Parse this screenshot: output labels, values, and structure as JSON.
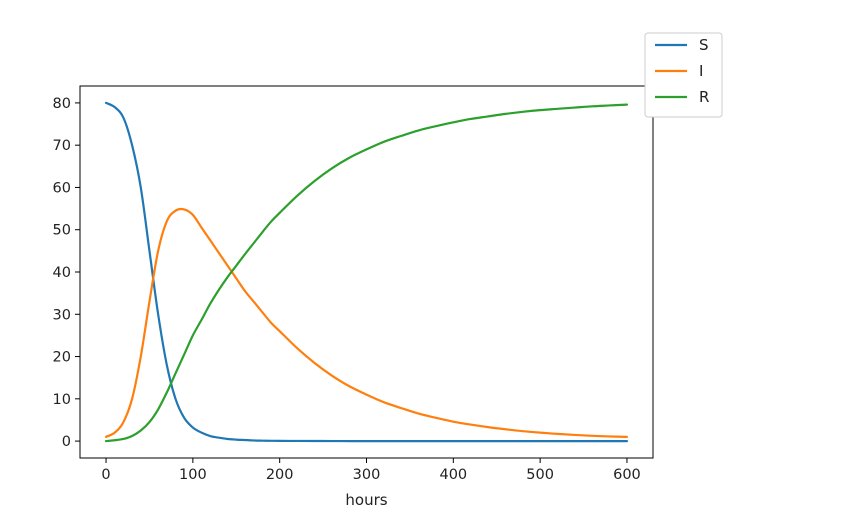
{
  "chart_data": {
    "type": "line",
    "xlabel": "hours",
    "ylabel": "",
    "title": "",
    "xlim": [
      -30,
      630
    ],
    "ylim": [
      -4,
      84
    ],
    "xticks": [
      0,
      100,
      200,
      300,
      400,
      500,
      600
    ],
    "yticks": [
      0,
      10,
      20,
      30,
      40,
      50,
      60,
      70,
      80
    ],
    "grid": false,
    "legend_position": "outside top-right",
    "x": [
      0,
      10,
      20,
      30,
      40,
      50,
      60,
      70,
      80,
      90,
      100,
      110,
      120,
      130,
      140,
      150,
      160,
      170,
      180,
      190,
      200,
      220,
      240,
      260,
      280,
      300,
      320,
      340,
      360,
      380,
      400,
      420,
      440,
      460,
      480,
      500,
      520,
      540,
      560,
      580,
      600
    ],
    "series": [
      {
        "name": "S",
        "color": "#1f77b4",
        "values": [
          80.0,
          79.0,
          76.5,
          70.0,
          60.0,
          45.0,
          30.0,
          18.0,
          10.0,
          5.5,
          3.2,
          2.0,
          1.2,
          0.8,
          0.5,
          0.35,
          0.25,
          0.15,
          0.1,
          0.07,
          0.05,
          0.03,
          0.02,
          0.01,
          0,
          0,
          0,
          0,
          0,
          0,
          0,
          0,
          0,
          0,
          0,
          0,
          0,
          0,
          0,
          0,
          0
        ]
      },
      {
        "name": "I",
        "color": "#ff7f0e",
        "values": [
          1.0,
          2.0,
          4.5,
          10.0,
          20.0,
          33.0,
          45.0,
          52.0,
          54.5,
          54.8,
          53.5,
          50.5,
          47.5,
          44.5,
          41.5,
          38.5,
          35.5,
          33.0,
          30.5,
          28.0,
          26.0,
          22.0,
          18.5,
          15.5,
          13.0,
          11.0,
          9.2,
          7.8,
          6.5,
          5.5,
          4.6,
          3.9,
          3.3,
          2.8,
          2.35,
          2.0,
          1.7,
          1.45,
          1.25,
          1.1,
          1.0
        ]
      },
      {
        "name": "R",
        "color": "#2ca02c",
        "values": [
          0.0,
          0.2,
          0.5,
          1.2,
          2.5,
          4.5,
          7.5,
          11.5,
          16.0,
          20.5,
          25.0,
          28.7,
          32.5,
          35.8,
          38.8,
          41.5,
          44.2,
          46.8,
          49.4,
          51.9,
          54.0,
          58.0,
          61.5,
          64.5,
          67.0,
          69.0,
          70.8,
          72.2,
          73.5,
          74.5,
          75.4,
          76.2,
          76.8,
          77.4,
          77.9,
          78.3,
          78.6,
          78.9,
          79.2,
          79.4,
          79.6
        ]
      }
    ]
  }
}
